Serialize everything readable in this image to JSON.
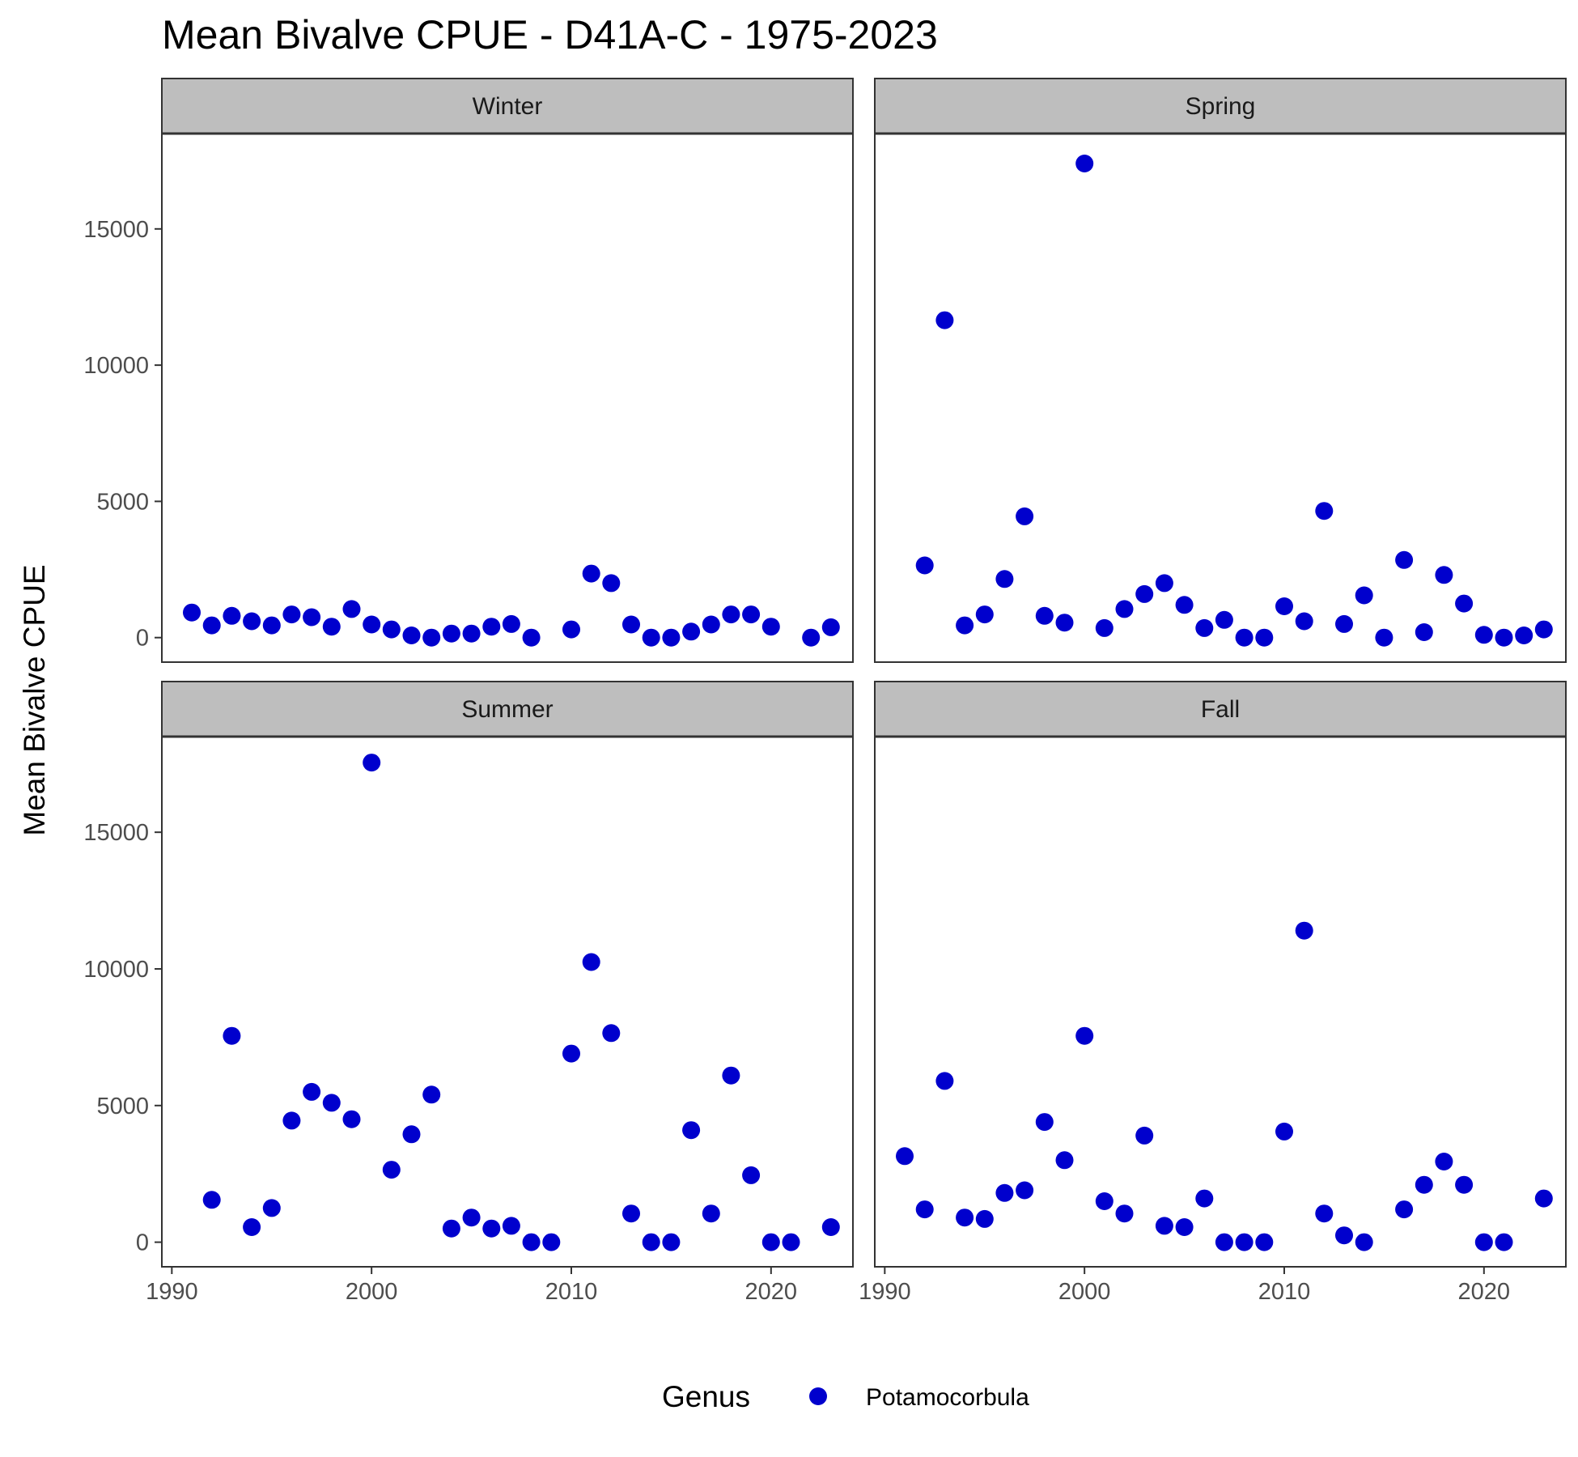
{
  "chart_data": {
    "type": "scatter",
    "title": "Mean Bivalve CPUE - D41A-C - 1975-2023",
    "ylabel": "Mean Bivalve CPUE",
    "xlabel": "",
    "xlim": [
      1989.5,
      2024.1
    ],
    "ylim": [
      -900,
      18500
    ],
    "x_ticks": [
      1990,
      2000,
      2010,
      2020
    ],
    "y_ticks": [
      0,
      5000,
      10000,
      15000
    ],
    "grid": false,
    "legend": {
      "title": "Genus",
      "position": "bottom",
      "items": [
        {
          "name": "Potamocorbula",
          "color": "#0000CD"
        }
      ]
    },
    "point_color": "#0000CD",
    "panels": [
      {
        "label": "Winter",
        "x": [
          1991,
          1992,
          1993,
          1994,
          1995,
          1996,
          1997,
          1998,
          1999,
          2000,
          2001,
          2002,
          2003,
          2004,
          2005,
          2006,
          2007,
          2008,
          2010,
          2011,
          2012,
          2013,
          2014,
          2015,
          2016,
          2017,
          2018,
          2019,
          2020,
          2022,
          2023
        ],
        "y": [
          920,
          450,
          800,
          600,
          450,
          850,
          750,
          400,
          1050,
          480,
          300,
          80,
          0,
          150,
          150,
          400,
          500,
          0,
          300,
          2350,
          2000,
          480,
          0,
          0,
          220,
          480,
          850,
          850,
          400,
          0,
          380
        ]
      },
      {
        "label": "Spring",
        "x": [
          1992,
          1993,
          1994,
          1995,
          1996,
          1997,
          1998,
          1999,
          2000,
          2001,
          2002,
          2003,
          2004,
          2005,
          2006,
          2007,
          2008,
          2009,
          2010,
          2011,
          2012,
          2013,
          2014,
          2015,
          2016,
          2017,
          2018,
          2019,
          2020,
          2021,
          2022,
          2023
        ],
        "y": [
          2650,
          11650,
          450,
          850,
          2150,
          4450,
          800,
          550,
          17400,
          350,
          1050,
          1600,
          2000,
          1200,
          350,
          650,
          0,
          0,
          1150,
          600,
          4650,
          500,
          1550,
          0,
          2850,
          200,
          2300,
          1250,
          100,
          0,
          80,
          300
        ]
      },
      {
        "label": "Summer",
        "x": [
          1992,
          1993,
          1994,
          1995,
          1996,
          1997,
          1998,
          1999,
          2000,
          2001,
          2002,
          2003,
          2004,
          2005,
          2006,
          2007,
          2008,
          2009,
          2010,
          2011,
          2012,
          2013,
          2014,
          2015,
          2016,
          2017,
          2018,
          2019,
          2020,
          2021,
          2023
        ],
        "y": [
          1550,
          7550,
          550,
          1250,
          4450,
          5500,
          5100,
          4500,
          17550,
          2650,
          3950,
          5400,
          500,
          900,
          500,
          600,
          0,
          0,
          6900,
          10250,
          7650,
          1050,
          0,
          0,
          4100,
          1050,
          6100,
          2450,
          0,
          0,
          550
        ]
      },
      {
        "label": "Fall",
        "x": [
          1991,
          1992,
          1993,
          1994,
          1995,
          1996,
          1997,
          1998,
          1999,
          2000,
          2001,
          2002,
          2003,
          2004,
          2005,
          2006,
          2007,
          2008,
          2009,
          2010,
          2011,
          2012,
          2013,
          2014,
          2016,
          2017,
          2018,
          2019,
          2020,
          2021,
          2023
        ],
        "y": [
          3150,
          1200,
          5900,
          900,
          850,
          1800,
          1900,
          4400,
          3000,
          7550,
          1500,
          1050,
          3900,
          600,
          550,
          1600,
          0,
          0,
          0,
          4050,
          11400,
          1050,
          250,
          0,
          1200,
          2100,
          2950,
          2100,
          0,
          0,
          1600
        ]
      }
    ]
  }
}
